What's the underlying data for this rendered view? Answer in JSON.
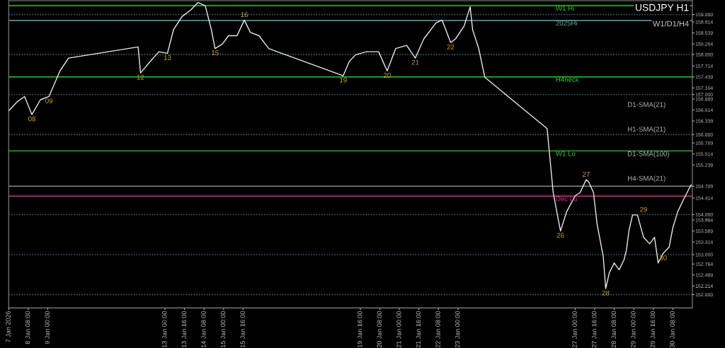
{
  "chart_data": {
    "type": "line",
    "title": "USDJPY H1",
    "subtitle": "W1/D1/H4",
    "series": [
      {
        "color": "#e8e8e8",
        "x": [
          "2026-01-07T16:00",
          "2026-01-07T23:00",
          "2026-01-08T05:00",
          "2026-01-08T11:00",
          "2026-01-08T18:00",
          "2026-01-09T01:00",
          "2026-01-09T10:00",
          "2026-01-09T17:00",
          "2026-01-12T02:00",
          "2026-01-12T04:00",
          "2026-01-12T12:00",
          "2026-01-12T19:00",
          "2026-01-13T02:00",
          "2026-01-13T07:00",
          "2026-01-13T14:00",
          "2026-01-13T21:00",
          "2026-01-14T03:00",
          "2026-01-14T09:00",
          "2026-01-14T14:00",
          "2026-01-14T17:00",
          "2026-01-14T23:00",
          "2026-01-15T04:00",
          "2026-01-15T11:00",
          "2026-01-15T17:00",
          "2026-01-15T22:00",
          "2026-01-16T05:00",
          "2026-01-16T13:00",
          "2026-01-16T20:00",
          "2026-01-19T02:00",
          "2026-01-19T07:00",
          "2026-01-19T12:00",
          "2026-01-19T21:00",
          "2026-01-20T07:00",
          "2026-01-20T14:00",
          "2026-01-20T21:00",
          "2026-01-21T06:00",
          "2026-01-21T13:00",
          "2026-01-21T20:00",
          "2026-01-22T06:00",
          "2026-01-22T11:00",
          "2026-01-22T18:00",
          "2026-01-22T22:00",
          "2026-01-23T05:00",
          "2026-01-23T10:00",
          "2026-01-23T12:00",
          "2026-01-23T17:00",
          "2026-01-23T22:00",
          "2026-01-26T01:00",
          "2026-01-26T04:00",
          "2026-01-26T06:00",
          "2026-01-26T10:00",
          "2026-01-26T12:00",
          "2026-01-26T17:00",
          "2026-01-27T00:00",
          "2026-01-27T04:00",
          "2026-01-27T09:00",
          "2026-01-27T11:00",
          "2026-01-27T15:00",
          "2026-01-27T18:00",
          "2026-01-27T23:00",
          "2026-01-28T01:00",
          "2026-01-28T04:00",
          "2026-01-28T08:00",
          "2026-01-28T12:00",
          "2026-01-28T16:00",
          "2026-01-28T18:00",
          "2026-01-28T20:00",
          "2026-01-28T23:00",
          "2026-01-29T03:00",
          "2026-01-29T08:00",
          "2026-01-29T13:00",
          "2026-01-29T17:00",
          "2026-01-29T20:00",
          "2026-01-30T00:00",
          "2026-01-30T05:00",
          "2026-01-30T08:00",
          "2026-01-30T12:00",
          "2026-01-30T17:00",
          "2026-01-30T21:00",
          "2026-01-30T23:00"
        ],
        "values": [
          156.59,
          156.82,
          156.95,
          156.5,
          156.87,
          156.95,
          157.59,
          157.91,
          158.19,
          157.54,
          157.83,
          158.07,
          158.03,
          158.62,
          158.95,
          159.11,
          159.3,
          159.22,
          158.62,
          158.15,
          158.26,
          158.47,
          158.47,
          158.86,
          158.55,
          158.47,
          158.15,
          158.07,
          157.47,
          157.83,
          157.99,
          158.07,
          158.07,
          157.59,
          158.15,
          158.23,
          157.91,
          158.39,
          158.79,
          158.86,
          158.3,
          158.39,
          158.71,
          159.19,
          158.62,
          158.15,
          157.43,
          156.15,
          155.19,
          154.55,
          153.9,
          153.59,
          154.07,
          154.47,
          154.55,
          154.87,
          154.82,
          154.55,
          153.75,
          152.95,
          152.15,
          152.55,
          152.79,
          152.62,
          152.87,
          153.11,
          153.59,
          153.99,
          153.99,
          153.43,
          153.27,
          153.43,
          152.79,
          153.03,
          153.19,
          153.67,
          154.07,
          154.39,
          154.63,
          154.74
        ]
      }
    ],
    "xlim": [
      "2026-01-07T16:00",
      "2026-01-31T00:00"
    ],
    "ylim": [
      151.665,
      159.345
    ],
    "xticks": [
      {
        "value": "2026-01-07T16:00",
        "label": "7 Jan 2026"
      },
      {
        "value": "2026-01-08T08:00",
        "label": "8 Jan 08:00"
      },
      {
        "value": "2026-01-09T00:00",
        "label": "9 Jan 00:00"
      },
      {
        "value": "2026-01-13T00:00",
        "label": "13 Jan 00:00"
      },
      {
        "value": "2026-01-13T16:00",
        "label": "13 Jan 16:00"
      },
      {
        "value": "2026-01-14T08:00",
        "label": "14 Jan 08:00"
      },
      {
        "value": "2026-01-15T00:00",
        "label": "15 Jan 00:00"
      },
      {
        "value": "2026-01-15T16:00",
        "label": "15 Jan 16:00"
      },
      {
        "value": "2026-01-19T16:00",
        "label": "19 Jan 16:00"
      },
      {
        "value": "2026-01-20T08:00",
        "label": "20 Jan 08:00"
      },
      {
        "value": "2026-01-21T00:00",
        "label": "21 Jan 00:00"
      },
      {
        "value": "2026-01-21T16:00",
        "label": "21 Jan 16:00"
      },
      {
        "value": "2026-01-22T08:00",
        "label": "22 Jan 08:00"
      },
      {
        "value": "2026-01-23T00:00",
        "label": "23 Jan 00:00"
      },
      {
        "value": "2026-01-27T00:00",
        "label": "27 Jan 00:00"
      },
      {
        "value": "2026-01-27T16:00",
        "label": "27 Jan 16:00"
      },
      {
        "value": "2026-01-28T08:00",
        "label": "28 Jan 08:00"
      },
      {
        "value": "2026-01-29T00:00",
        "label": "29 Jan 00:00"
      },
      {
        "value": "2026-01-29T16:00",
        "label": "29 Jan 16:00"
      },
      {
        "value": "2026-01-30T08:00",
        "label": "30 Jan 08:00"
      }
    ],
    "yticks": [
      {
        "value": 159.0,
        "label": "159.000"
      },
      158.814,
      158.539,
      158.264,
      {
        "value": 158.0,
        "label": "158.000"
      },
      157.714,
      157.439,
      157.164,
      {
        "value": 157.0,
        "label": "157.000"
      },
      156.889,
      156.614,
      156.339,
      {
        "value": 156.0,
        "label": "156.000"
      },
      155.789,
      155.514,
      155.239,
      154.709,
      154.414,
      {
        "value": 154.0,
        "label": "154.000"
      },
      153.864,
      153.589,
      153.314,
      {
        "value": 153.0,
        "label": "153.000"
      },
      152.764,
      152.489,
      152.214,
      {
        "value": 152.0,
        "label": "152.000"
      }
    ],
    "ref_lines": [
      {
        "axis": "y",
        "value": 159.22,
        "label": "W1 Hi",
        "color": "#22cc22",
        "line_style": "solid"
      },
      {
        "axis": "y",
        "value": 158.85,
        "label": "2025Hi",
        "color": "#5fa8a8",
        "line_style": "solid"
      },
      {
        "axis": "y",
        "value": 157.44,
        "label": "H4neck",
        "color": "#22cc22",
        "line_style": "solid"
      },
      {
        "axis": "y",
        "value": 155.59,
        "label": "W1 Lo",
        "color": "#22cc22",
        "line_style": "solid"
      },
      {
        "axis": "y",
        "value": 154.46,
        "label": "Dec Lo",
        "color": "#e0288c",
        "line_style": "solid"
      },
      {
        "axis": "y",
        "value": 154.709,
        "color": "#888888",
        "line_style": "solid"
      },
      {
        "axis": "y",
        "value": 159.0,
        "color": "#3a8a8a",
        "line_style": "dotted"
      },
      {
        "axis": "y",
        "value": 158.0,
        "color": "#3a8a8a",
        "line_style": "dotted"
      },
      {
        "axis": "y",
        "value": 157.0,
        "color": "#3a8a8a",
        "line_style": "dotted"
      },
      {
        "axis": "y",
        "value": 156.0,
        "color": "#3a8a8a",
        "line_style": "dotted"
      },
      {
        "axis": "y",
        "value": 154.0,
        "color": "#3a8a8a",
        "line_style": "dotted"
      },
      {
        "axis": "y",
        "value": 153.0,
        "color": "#3a8a8a",
        "line_style": "dotted"
      },
      {
        "axis": "y",
        "value": 152.0,
        "color": "#3a8a8a",
        "line_style": "dotted"
      }
    ],
    "annotations": [
      {
        "text": "08",
        "x": "2026-01-08T11:00",
        "y": 156.5
      },
      {
        "text": "09",
        "x": "2026-01-09T01:00",
        "y": 156.95
      },
      {
        "text": "12",
        "x": "2026-01-12T04:00",
        "y": 157.54
      },
      {
        "text": "13",
        "x": "2026-01-13T02:00",
        "y": 158.03
      },
      {
        "text": "15",
        "x": "2026-01-14T17:00",
        "y": 158.15
      },
      {
        "text": "16",
        "x": "2026-01-15T17:00",
        "y": 158.86
      },
      {
        "text": "19",
        "x": "2026-01-19T02:00",
        "y": 157.47
      },
      {
        "text": "20",
        "x": "2026-01-20T14:00",
        "y": 157.59
      },
      {
        "text": "21",
        "x": "2026-01-21T13:00",
        "y": 157.91
      },
      {
        "text": "22",
        "x": "2026-01-22T18:00",
        "y": 158.3
      },
      {
        "text": "26",
        "x": "2026-01-26T12:00",
        "y": 153.59
      },
      {
        "text": "27",
        "x": "2026-01-27T09:00",
        "y": 154.87
      },
      {
        "text": "28",
        "x": "2026-01-28T01:00",
        "y": 152.15
      },
      {
        "text": "29",
        "x": "2026-01-29T08:00",
        "y": 153.99
      },
      {
        "text": "30",
        "x": "2026-01-30T00:00",
        "y": 153.03
      },
      "D1-SMA(21)",
      "H1-SMA(21)",
      "D1-SMA(100)",
      "H4-SMA(21)"
    ],
    "grid": false,
    "line_style": "solid",
    "marker": "none"
  }
}
